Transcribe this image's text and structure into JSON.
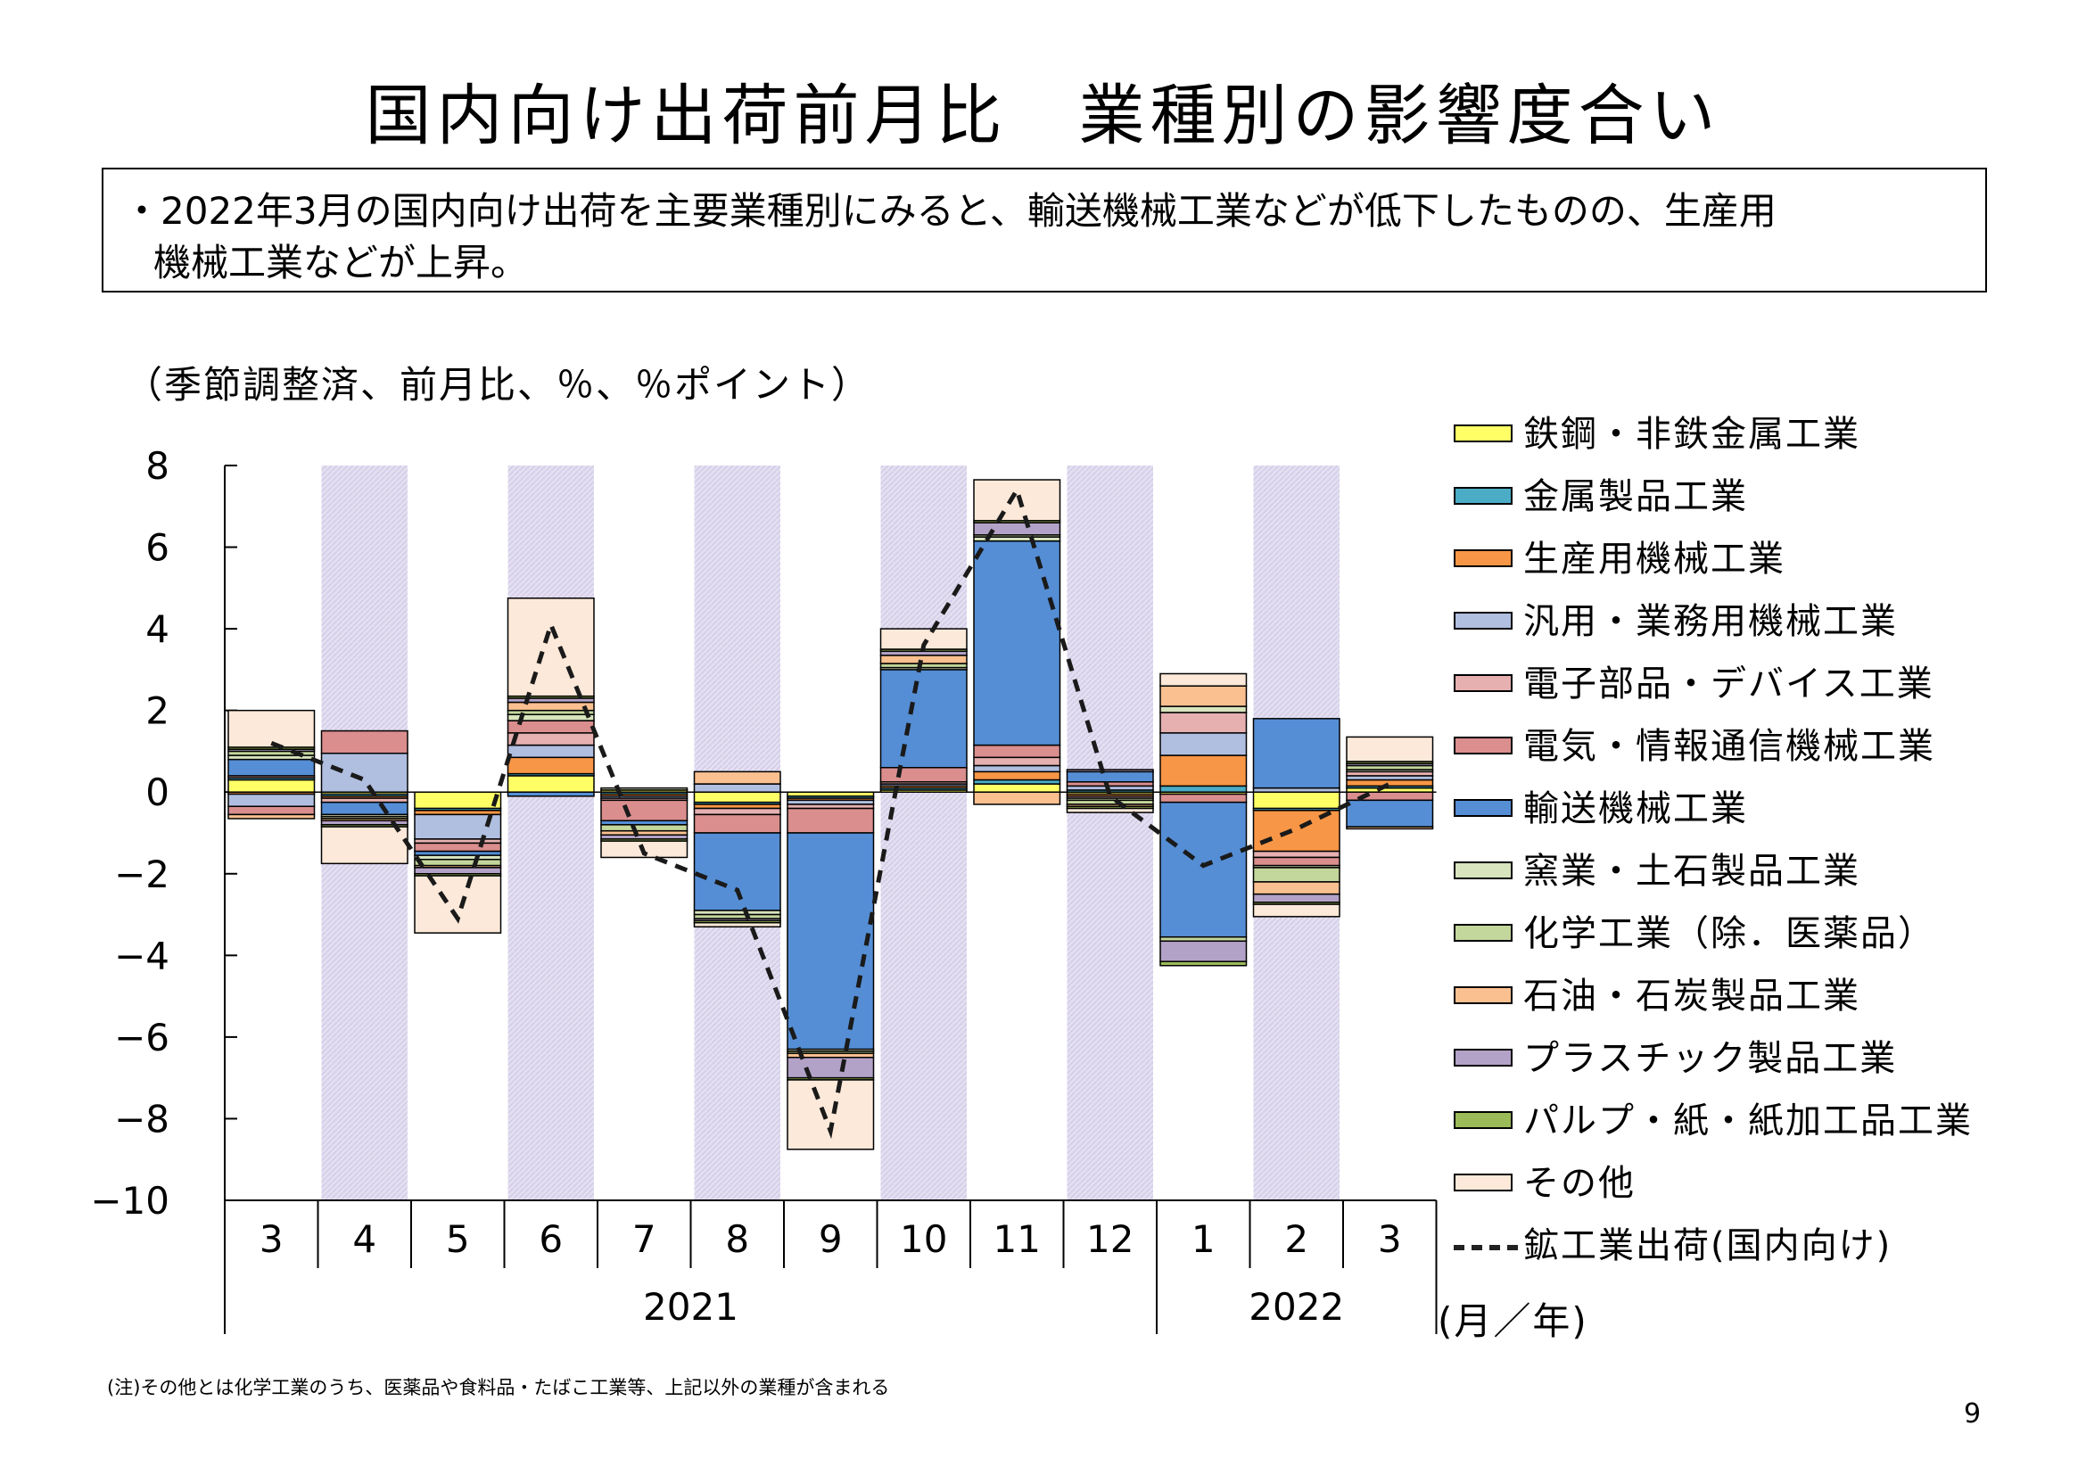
{
  "title": "国内向け出荷前月比　業種別の影響度合い",
  "summary": {
    "line1": "・2022年3月の国内向け出荷を主要業種別にみると、輸送機械工業などが低下したものの、生産用",
    "line2": "機械工業などが上昇。"
  },
  "unit_note": "（季節調整済、前月比、％、％ポイント）",
  "axis_unit": "(月／年)",
  "footnote": "(注)その他とは化学工業のうち、医薬品や食料品・たばこ工業等、上記以外の業種が含まれる",
  "page_number": "9",
  "colors": {
    "shade": "#e3dff0",
    "line": "#1a1a1a"
  },
  "chart_data": {
    "type": "bar",
    "stacked": true,
    "ylim": [
      -10,
      8
    ],
    "yticks": [
      "8",
      "6",
      "4",
      "2",
      "0",
      "−2",
      "−4",
      "−6",
      "−8",
      "−10"
    ],
    "ytick_values": [
      8,
      6,
      4,
      2,
      0,
      -2,
      -4,
      -6,
      -8,
      -10
    ],
    "categories": [
      "3",
      "4",
      "5",
      "6",
      "7",
      "8",
      "9",
      "10",
      "11",
      "12",
      "1",
      "2",
      "3"
    ],
    "years": [
      {
        "label": "2021",
        "start": 0,
        "end": 9
      },
      {
        "label": "2022",
        "start": 10,
        "end": 12
      }
    ],
    "shaded_categories": [
      1,
      3,
      5,
      7,
      9,
      11
    ],
    "series": [
      {
        "name": "鉄鋼・非鉄金属工業",
        "color": "#ffff66",
        "values": [
          0.3,
          -0.05,
          -0.4,
          0.4,
          0.05,
          -0.25,
          -0.1,
          0.05,
          0.2,
          -0.05,
          -0.05,
          -0.4,
          0.1
        ]
      },
      {
        "name": "金属製品工業",
        "color": "#4bacc6",
        "values": [
          0.05,
          -0.05,
          -0.05,
          0.05,
          -0.05,
          -0.05,
          -0.05,
          0.05,
          0.1,
          0.05,
          0.15,
          -0.05,
          0.05
        ]
      },
      {
        "name": "生産用機械工業",
        "color": "#f79646",
        "values": [
          -0.05,
          -0.05,
          -0.1,
          0.4,
          -0.05,
          -0.1,
          -0.05,
          0.05,
          0.2,
          -0.05,
          0.75,
          -1.0,
          0.15
        ]
      },
      {
        "name": "汎用・業務用機械工業",
        "color": "#b0bee0",
        "values": [
          -0.3,
          0.95,
          -0.6,
          0.3,
          -0.05,
          0.2,
          -0.1,
          0.05,
          0.15,
          0.1,
          0.55,
          0.1,
          0.1
        ]
      },
      {
        "name": "電子部品・デバイス工業",
        "color": "#e6b0b0",
        "values": [
          0.05,
          -0.1,
          -0.1,
          0.3,
          -0.05,
          -0.15,
          -0.1,
          0.05,
          0.2,
          -0.05,
          0.5,
          -0.15,
          0.1
        ]
      },
      {
        "name": "電気・情報通信機械工業",
        "color": "#da8e8e",
        "values": [
          -0.2,
          0.55,
          -0.2,
          0.3,
          -0.5,
          -0.45,
          -0.6,
          0.35,
          0.3,
          0.1,
          -0.2,
          -0.2,
          -0.2
        ]
      },
      {
        "name": "輸送機械工業",
        "color": "#558ed5",
        "values": [
          0.4,
          -0.3,
          -0.1,
          -0.1,
          -0.1,
          -1.9,
          -5.3,
          2.4,
          5.0,
          0.25,
          -3.3,
          1.7,
          -0.65
        ]
      },
      {
        "name": "窯業・土石製品工業",
        "color": "#d7e4bd",
        "values": [
          0.1,
          -0.05,
          -0.1,
          0.15,
          0.05,
          -0.1,
          -0.05,
          0.05,
          0.1,
          -0.05,
          0.15,
          -0.05,
          0.05
        ]
      },
      {
        "name": "化学工業（除．医薬品）",
        "color": "#c3d69b",
        "values": [
          0.1,
          -0.05,
          -0.15,
          0.1,
          -0.15,
          -0.1,
          -0.05,
          0.1,
          0.05,
          -0.1,
          -0.1,
          -0.35,
          0.1
        ]
      },
      {
        "name": "石油・石炭製品工業",
        "color": "#fac090",
        "values": [
          -0.1,
          -0.05,
          -0.05,
          0.2,
          -0.1,
          0.3,
          -0.1,
          0.2,
          -0.3,
          -0.05,
          0.5,
          -0.3,
          -0.05
        ]
      },
      {
        "name": "プラスチック製品工業",
        "color": "#b3a2c7",
        "values": [
          0.05,
          -0.1,
          -0.15,
          0.1,
          -0.1,
          -0.05,
          -0.5,
          0.1,
          0.3,
          0.05,
          -0.5,
          -0.2,
          0.05
        ]
      },
      {
        "name": "パルプ・紙・紙加工品工業",
        "color": "#9bbb59",
        "values": [
          0.05,
          -0.05,
          -0.05,
          0.05,
          -0.05,
          -0.05,
          -0.05,
          0.05,
          0.05,
          -0.05,
          -0.1,
          -0.05,
          0.05
        ]
      },
      {
        "name": "その他",
        "color": "#fde9d9",
        "values": [
          0.9,
          -0.9,
          -1.4,
          2.4,
          -0.4,
          -0.1,
          -1.7,
          0.5,
          1.0,
          -0.1,
          0.3,
          -0.3,
          0.6
        ]
      }
    ],
    "line": {
      "name": "鉱工業出荷(国内向け)",
      "values": [
        1.2,
        0.3,
        -3.1,
        4.1,
        -1.5,
        -2.4,
        -8.3,
        3.6,
        7.4,
        -0.1,
        -1.8,
        -0.9,
        0.2
      ]
    }
  }
}
